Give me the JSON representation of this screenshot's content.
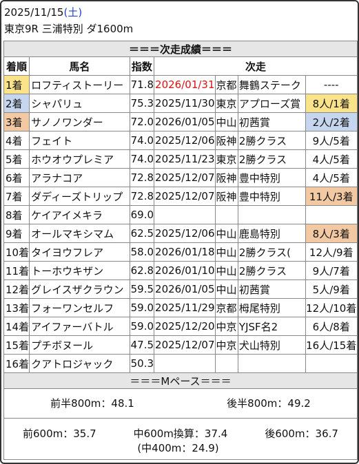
{
  "header": {
    "date": "2025/11/15",
    "weekday": "(土)",
    "race_info": "東京9R 三浦特別 ダ1600m"
  },
  "section_results": "＝＝＝次走成績＝＝＝",
  "columns": {
    "rank": "着順",
    "horse": "馬名",
    "index": "指数",
    "next": "次走"
  },
  "rows": [
    {
      "rank": "1着",
      "name": "ロフティストーリー",
      "idx": "71.8",
      "date": "2026/01/31",
      "place": "京都",
      "race": "舞鶴ステーク",
      "res": "----",
      "rank_color": "#fbe38a",
      "res_color": "",
      "date_color": "#e01010"
    },
    {
      "rank": "2着",
      "name": "シャパリュ",
      "idx": "75.3",
      "date": "2025/11/30",
      "place": "東京",
      "race": "アプローズ賞",
      "res": "8人/1着",
      "rank_color": "#c6d6ef",
      "res_color": "#fbe38a",
      "date_color": ""
    },
    {
      "rank": "3着",
      "name": "サノノワンダー",
      "idx": "72.0",
      "date": "2026/01/05",
      "place": "中山",
      "race": "初茜賞",
      "res": "2人/2着",
      "rank_color": "#f3c9a3",
      "res_color": "#c6d6ef",
      "date_color": ""
    },
    {
      "rank": "4着",
      "name": "フェイト",
      "idx": "74.0",
      "date": "2025/12/06",
      "place": "阪神",
      "race": "2勝クラス",
      "res": "9人/5着",
      "rank_color": "",
      "res_color": "",
      "date_color": ""
    },
    {
      "rank": "5着",
      "name": "ホウオウプレミア",
      "idx": "74.0",
      "date": "2025/11/23",
      "place": "東京",
      "race": "2勝クラス",
      "res": "4人/5着",
      "rank_color": "",
      "res_color": "",
      "date_color": ""
    },
    {
      "rank": "6着",
      "name": "アラナコア",
      "idx": "72.8",
      "date": "2025/12/07",
      "place": "阪神",
      "race": "豊中特別",
      "res": "4人/5着",
      "rank_color": "",
      "res_color": "",
      "date_color": ""
    },
    {
      "rank": "7着",
      "name": "ダディーズトリップ",
      "idx": "72.8",
      "date": "2025/12/07",
      "place": "阪神",
      "race": "豊中特別",
      "res": "11人/3着",
      "rank_color": "",
      "res_color": "#f3c9a3",
      "date_color": ""
    },
    {
      "rank": "8着",
      "name": "ケイアイメキラ",
      "idx": "69.0",
      "date": "",
      "place": "",
      "race": "",
      "res": "",
      "rank_color": "",
      "res_color": "",
      "date_color": ""
    },
    {
      "rank": "9着",
      "name": "オールマキシマム",
      "idx": "62.5",
      "date": "2025/12/06",
      "place": "中山",
      "race": "鹿島特別",
      "res": "8人/3着",
      "rank_color": "",
      "res_color": "#f3c9a3",
      "date_color": ""
    },
    {
      "rank": "10着",
      "name": "タイヨウフレア",
      "idx": "58.0",
      "date": "2026/01/18",
      "place": "中山",
      "race": "2勝クラス(",
      "res": "12人/9着",
      "rank_color": "",
      "res_color": "",
      "date_color": ""
    },
    {
      "rank": "11着",
      "name": "トーホウキザン",
      "idx": "62.8",
      "date": "2026/01/10",
      "place": "中山",
      "race": "2勝クラス",
      "res": "9人/7着",
      "rank_color": "",
      "res_color": "",
      "date_color": ""
    },
    {
      "rank": "12着",
      "name": "グレイスザクラウン",
      "idx": "59.5",
      "date": "2026/01/05",
      "place": "中山",
      "race": "初茜賞",
      "res": "5人/9着",
      "rank_color": "",
      "res_color": "",
      "date_color": ""
    },
    {
      "rank": "13着",
      "name": "フォーワンセルフ",
      "idx": "59.0",
      "date": "2025/11/29",
      "place": "京都",
      "race": "栂尾特別",
      "res": "12人/10着",
      "rank_color": "",
      "res_color": "",
      "date_color": ""
    },
    {
      "rank": "14着",
      "name": "アイファーバトル",
      "idx": "59.0",
      "date": "2025/12/20",
      "place": "中京",
      "race": "YJSF名2",
      "res": "6人/8着",
      "rank_color": "",
      "res_color": "",
      "date_color": ""
    },
    {
      "rank": "15着",
      "name": "プチボヌール",
      "idx": "47.5",
      "date": "2025/12/07",
      "place": "中京",
      "race": "犬山特別",
      "res": "16人/15着",
      "rank_color": "",
      "res_color": "",
      "date_color": ""
    },
    {
      "rank": "16着",
      "name": "クアトロジャック",
      "idx": "50.3",
      "date": "",
      "place": "",
      "race": "",
      "res": "",
      "rank_color": "",
      "res_color": "",
      "date_color": ""
    }
  ],
  "section_pace": "＝＝＝Mペース＝＝＝",
  "pace": {
    "first800": "前半800m：48.1",
    "second800": "後半800m：49.2",
    "front600": "前600m：35.7",
    "mid600": "中600m換算：37.4",
    "mid400": "(中400m：24.9)",
    "back600": "後600m：36.7"
  }
}
